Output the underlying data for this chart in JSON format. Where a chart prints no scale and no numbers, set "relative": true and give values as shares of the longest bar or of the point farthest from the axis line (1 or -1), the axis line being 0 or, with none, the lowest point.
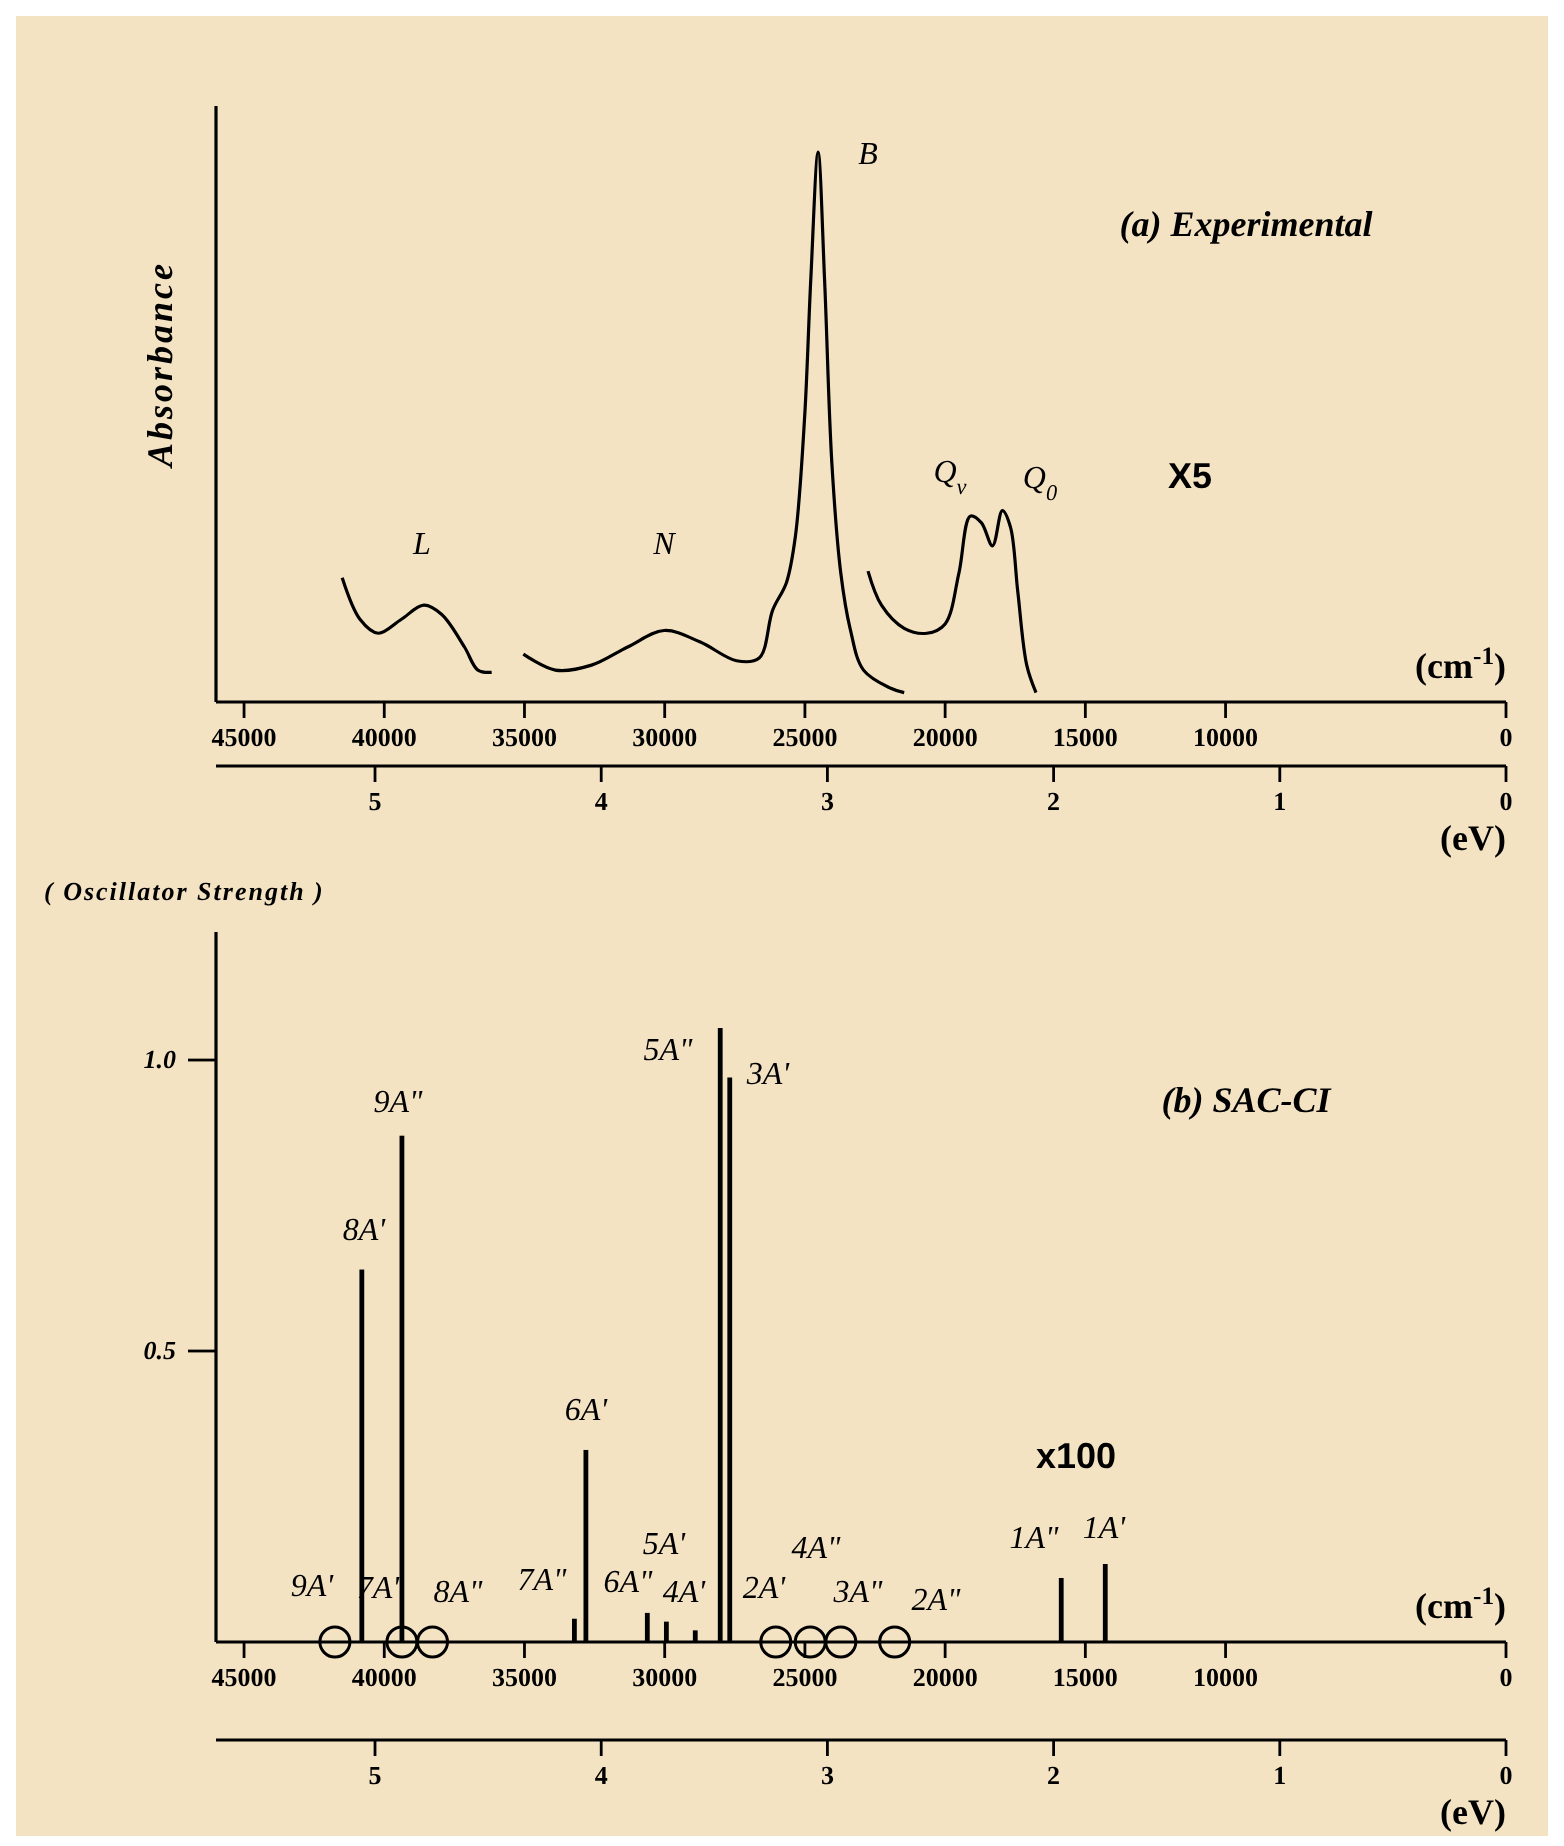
{
  "chart_data": [
    {
      "type": "line",
      "relative": true,
      "title": "(a)  Experimental",
      "ylabel": "Absorbance",
      "xlabel": "(cm$^{-1}$)",
      "x2label": "(eV)",
      "xlim": [
        46000,
        0
      ],
      "xticks": [
        45000,
        40000,
        35000,
        30000,
        25000,
        20000,
        15000,
        10000,
        0
      ],
      "x2lim": [
        5.703,
        0
      ],
      "x2ticks": [
        5,
        4,
        3,
        2,
        1,
        0
      ],
      "series": [
        {
          "color": "#000000",
          "x": [
            41500,
            40860,
            40210,
            39400,
            38590,
            37950,
            37140,
            36660,
            36170
          ],
          "values": [
            0.226,
            0.15,
            0.125,
            0.15,
            0.176,
            0.159,
            0.1,
            0.058,
            0.054
          ]
        },
        {
          "color": "#000000",
          "x": [
            35040,
            33900,
            32610,
            31320,
            30020,
            28730,
            27440,
            26630,
            26150,
            25660,
            25340,
            25010,
            24790,
            24530,
            24300,
            24040,
            23720,
            23390,
            22910,
            21940,
            21460
          ],
          "values": [
            0.087,
            0.058,
            0.067,
            0.1,
            0.13,
            0.109,
            0.075,
            0.08,
            0.167,
            0.217,
            0.301,
            0.518,
            0.769,
            1.0,
            0.769,
            0.435,
            0.234,
            0.134,
            0.058,
            0.025,
            0.017
          ]
        },
        {
          "color": "#000000",
          "x": [
            22750,
            22270,
            21460,
            20650,
            20000,
            19510,
            19100,
            18710,
            18310,
            17960,
            17670,
            17410,
            17090,
            16760
          ],
          "values": [
            0.238,
            0.176,
            0.134,
            0.125,
            0.142,
            0.234,
            0.338,
            0.326,
            0.284,
            0.348,
            0.318,
            0.201,
            0.067,
            0.017
          ]
        }
      ],
      "annotations": [
        "L",
        "N",
        "B",
        "Q$_{v}$",
        "Q$_{0}$",
        "X5"
      ]
    },
    {
      "type": "bar",
      "title": "(b)  SAC-CI",
      "ylabel": "( Oscillator Strength )",
      "xlabel": "(cm$^{-1}$)",
      "x2label": "(eV)",
      "xlim": [
        46000,
        0
      ],
      "xticks": [
        45000,
        40000,
        35000,
        30000,
        25000,
        20000,
        15000,
        10000,
        0
      ],
      "x2lim": [
        5.703,
        0
      ],
      "x2ticks": [
        5,
        4,
        3,
        2,
        1,
        0
      ],
      "ylim": [
        0,
        1.22
      ],
      "yticks": [
        {
          "value": 1.0,
          "label": "1.0"
        },
        0.5
      ],
      "series": [
        {
          "color": "#000000",
          "x": [
            40800,
            39370,
            33220,
            32810,
            30620,
            29940,
            28910,
            28020,
            27680,
            15860,
            14290
          ],
          "values": [
            0.64,
            0.87,
            0.04,
            0.33,
            0.05,
            0.035,
            0.02,
            1.055,
            0.97,
            0.11,
            0.134
          ]
        },
        {
          "type": "scatter",
          "marker": "circle",
          "color": "#000000",
          "x": [
            41760,
            39370,
            38280,
            26040,
            24810,
            23720,
            21800
          ],
          "values": [
            0,
            0,
            0,
            0,
            0,
            0,
            0
          ]
        }
      ],
      "annotations": [
        "9A'",
        "7A'",
        "8A\"",
        "8A'",
        "9A\"",
        "7A\"",
        "6A'",
        "6A\"",
        "5A'",
        "4A'",
        "5A\"",
        "3A'",
        "2A'",
        "4A\"",
        "3A\"",
        "2A\"",
        "1A\"",
        "1A'",
        "x100"
      ]
    }
  ]
}
